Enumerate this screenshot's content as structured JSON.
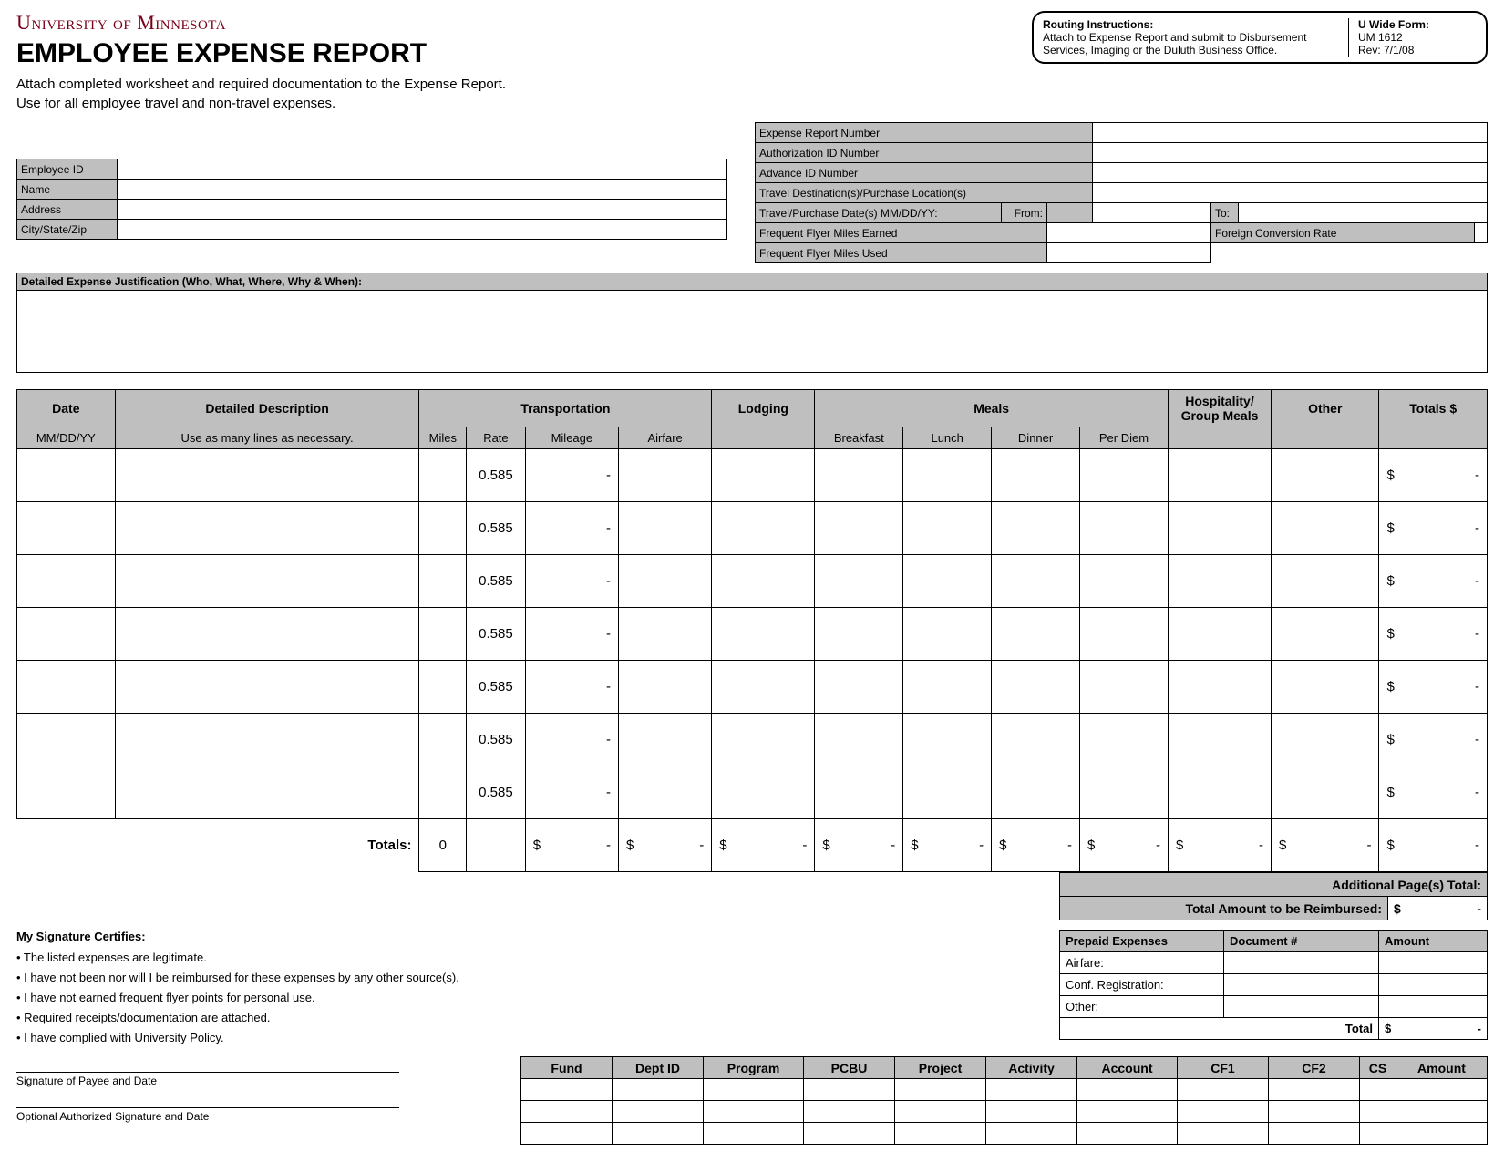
{
  "header": {
    "university": "University of Minnesota",
    "title": "EMPLOYEE EXPENSE REPORT",
    "subtitle1": "Attach completed worksheet and required documentation to the Expense Report.",
    "subtitle2": "Use for all employee travel and non-travel expenses."
  },
  "routing": {
    "instructions_label": "Routing Instructions:",
    "instructions_text": "Attach to Expense Report and submit to Disbursement Services, Imaging or the Duluth Business Office.",
    "form_label": "U Wide Form:",
    "form_num": "UM 1612",
    "rev": "Rev: 7/1/08"
  },
  "emp_fields": {
    "employee_id": "Employee ID",
    "name": "Name",
    "address": "Address",
    "city": "City/State/Zip"
  },
  "right_fields": {
    "report_num": "Expense Report Number",
    "auth_id": "Authorization ID Number",
    "advance_id": "Advance ID Number",
    "destination": "Travel Destination(s)/Purchase Location(s)",
    "dates": "Travel/Purchase Date(s) MM/DD/YY:",
    "from": "From:",
    "to": "To:",
    "ff_earned": "Frequent Flyer Miles Earned",
    "foreign_rate": "Foreign Conversion Rate",
    "ff_used": "Frequent Flyer Miles Used"
  },
  "justification_label": "Detailed Expense Justification (Who, What, Where, Why & When):",
  "columns": {
    "date": "Date",
    "date_sub": "MM/DD/YY",
    "desc": "Detailed Description",
    "desc_sub": "Use as many lines as necessary.",
    "transport": "Transportation",
    "miles": "Miles",
    "rate": "Rate",
    "mileage": "Mileage",
    "airfare": "Airfare",
    "lodging": "Lodging",
    "meals": "Meals",
    "breakfast": "Breakfast",
    "lunch": "Lunch",
    "dinner": "Dinner",
    "perdiem": "Per Diem",
    "hospitality": "Hospitality/ Group Meals",
    "other": "Other",
    "totals": "Totals $"
  },
  "rows": [
    {
      "rate": "0.585",
      "mileage": "-",
      "total_d": "$",
      "total_v": "-"
    },
    {
      "rate": "0.585",
      "mileage": "-",
      "total_d": "$",
      "total_v": "-"
    },
    {
      "rate": "0.585",
      "mileage": "-",
      "total_d": "$",
      "total_v": "-"
    },
    {
      "rate": "0.585",
      "mileage": "-",
      "total_d": "$",
      "total_v": "-"
    },
    {
      "rate": "0.585",
      "mileage": "-",
      "total_d": "$",
      "total_v": "-"
    },
    {
      "rate": "0.585",
      "mileage": "-",
      "total_d": "$",
      "total_v": "-"
    },
    {
      "rate": "0.585",
      "mileage": "-",
      "total_d": "$",
      "total_v": "-"
    }
  ],
  "totals": {
    "label": "Totals:",
    "miles": "0",
    "cells": [
      "$",
      "-",
      "$",
      "-",
      "$",
      "-",
      "$",
      "-",
      "$",
      "-",
      "$",
      "-",
      "$",
      "-",
      "$",
      "-",
      "$",
      "-",
      "$",
      "-"
    ]
  },
  "additional": {
    "pages_label": "Additional Page(s) Total:",
    "reimbursed_label": "Total Amount to be Reimbursed:",
    "reimbursed_d": "$",
    "reimbursed_v": "-"
  },
  "cert": {
    "title": "My Signature Certifies:",
    "items": [
      "The listed expenses are legitimate.",
      "I have not been nor will I be reimbursed for these expenses by any other source(s).",
      "I have not earned frequent flyer points for personal use.",
      "Required receipts/documentation are attached.",
      "I have complied with University Policy."
    ],
    "sig1": "Signature of Payee and Date",
    "sig2": "Optional Authorized Signature and Date"
  },
  "prepaid": {
    "h1": "Prepaid Expenses",
    "h2": "Document #",
    "h3": "Amount",
    "r1": "Airfare:",
    "r2": "Conf. Registration:",
    "r3": "Other:",
    "total_label": "Total",
    "total_d": "$",
    "total_v": "-"
  },
  "acct_headers": [
    "Fund",
    "Dept ID",
    "Program",
    "PCBU",
    "Project",
    "Activity",
    "Account",
    "CF1",
    "CF2",
    "CS",
    "Amount"
  ]
}
